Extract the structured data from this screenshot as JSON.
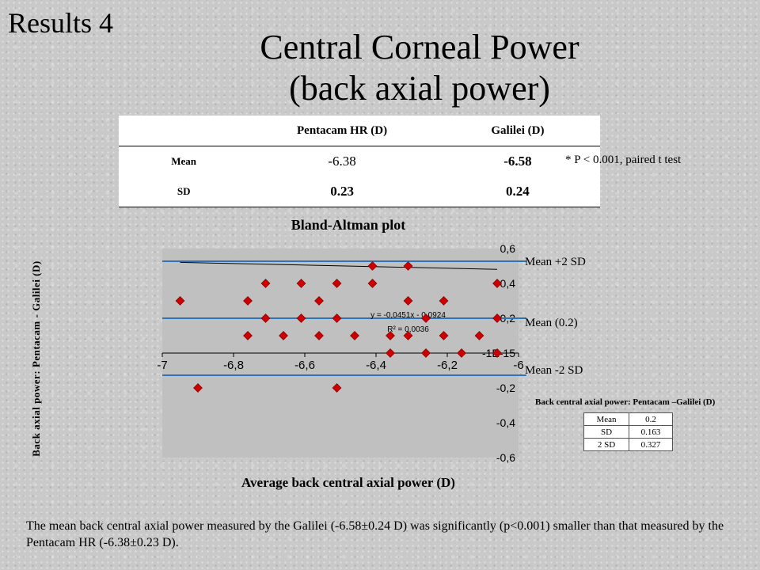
{
  "section_label": "Results 4",
  "title": {
    "line1": "Central Corneal Power",
    "line2": "(back axial power)"
  },
  "stats_table": {
    "headers": [
      "",
      "Pentacam HR (D)",
      "Galilei (D)"
    ],
    "rows": [
      {
        "label": "Mean",
        "pentacam": "-6.38",
        "galilei": "-6.58"
      },
      {
        "label": "SD",
        "pentacam": "0.23",
        "galilei": "0.24"
      }
    ]
  },
  "p_note": "* P < 0.001,  paired t test",
  "chart_data": {
    "type": "scatter",
    "title": "Bland-Altman plot",
    "xlabel": "Average back central axial power (D)",
    "ylabel": "Back  axial  power: Pentacam - Galilei (D)",
    "xlim": [
      -7,
      -6
    ],
    "ylim": [
      -0.6,
      0.6
    ],
    "x_tick_labels": [
      "-7",
      "-6,8",
      "-6,6",
      "-6,4",
      "-6,2",
      "-6"
    ],
    "y_tick_labels": [
      "0,6",
      "0,4",
      "0,2",
      "-1E-15",
      "-0,2",
      "-0,4",
      "-0,6"
    ],
    "points": [
      {
        "x": -6.95,
        "y": 0.3
      },
      {
        "x": -6.9,
        "y": -0.2
      },
      {
        "x": -6.76,
        "y": 0.3
      },
      {
        "x": -6.76,
        "y": 0.1
      },
      {
        "x": -6.71,
        "y": 0.4
      },
      {
        "x": -6.71,
        "y": 0.2
      },
      {
        "x": -6.66,
        "y": 0.1
      },
      {
        "x": -6.61,
        "y": 0.4
      },
      {
        "x": -6.61,
        "y": 0.2
      },
      {
        "x": -6.56,
        "y": 0.3
      },
      {
        "x": -6.56,
        "y": 0.1
      },
      {
        "x": -6.51,
        "y": 0.4
      },
      {
        "x": -6.51,
        "y": 0.2
      },
      {
        "x": -6.51,
        "y": -0.2
      },
      {
        "x": -6.46,
        "y": 0.1
      },
      {
        "x": -6.41,
        "y": 0.5
      },
      {
        "x": -6.41,
        "y": 0.4
      },
      {
        "x": -6.36,
        "y": 0.1
      },
      {
        "x": -6.36,
        "y": 0.0
      },
      {
        "x": -6.31,
        "y": 0.5
      },
      {
        "x": -6.31,
        "y": 0.3
      },
      {
        "x": -6.31,
        "y": 0.1
      },
      {
        "x": -6.26,
        "y": 0.2
      },
      {
        "x": -6.26,
        "y": 0.0
      },
      {
        "x": -6.21,
        "y": 0.3
      },
      {
        "x": -6.21,
        "y": 0.1
      },
      {
        "x": -6.16,
        "y": 0.0
      },
      {
        "x": -6.11,
        "y": 0.1
      },
      {
        "x": -6.06,
        "y": 0.4
      },
      {
        "x": -6.06,
        "y": 0.2
      },
      {
        "x": -6.06,
        "y": 0.0
      }
    ],
    "reference_lines": [
      {
        "label": "Mean  +2 SD",
        "y": 0.527
      },
      {
        "label": "Mean  (0.2)",
        "y": 0.2
      },
      {
        "label": "Mean  -2 SD",
        "y": -0.127
      }
    ],
    "trendline": {
      "equation": "y = -0,0451x - 0,0924",
      "r_squared": "R² = 0,0036",
      "slope": -0.0451,
      "intercept": -0.0924
    },
    "colors": {
      "points": "#cc0000",
      "reference_lines": "#2e75b6",
      "plot_area": "#c0c0c0"
    }
  },
  "summary": {
    "title": "Back central axial power: Pentacam –Galilei (D)",
    "rows": [
      {
        "label": "Mean",
        "value": "0.2"
      },
      {
        "label": "SD",
        "value": "0.163"
      },
      {
        "label": "2 SD",
        "value": "0.327"
      }
    ]
  },
  "caption": "The mean back central axial power measured by the Galilei (-6.58±0.24 D) was significantly (p<0.001) smaller than that measured by the Pentacam HR (-6.38±0.23 D)."
}
